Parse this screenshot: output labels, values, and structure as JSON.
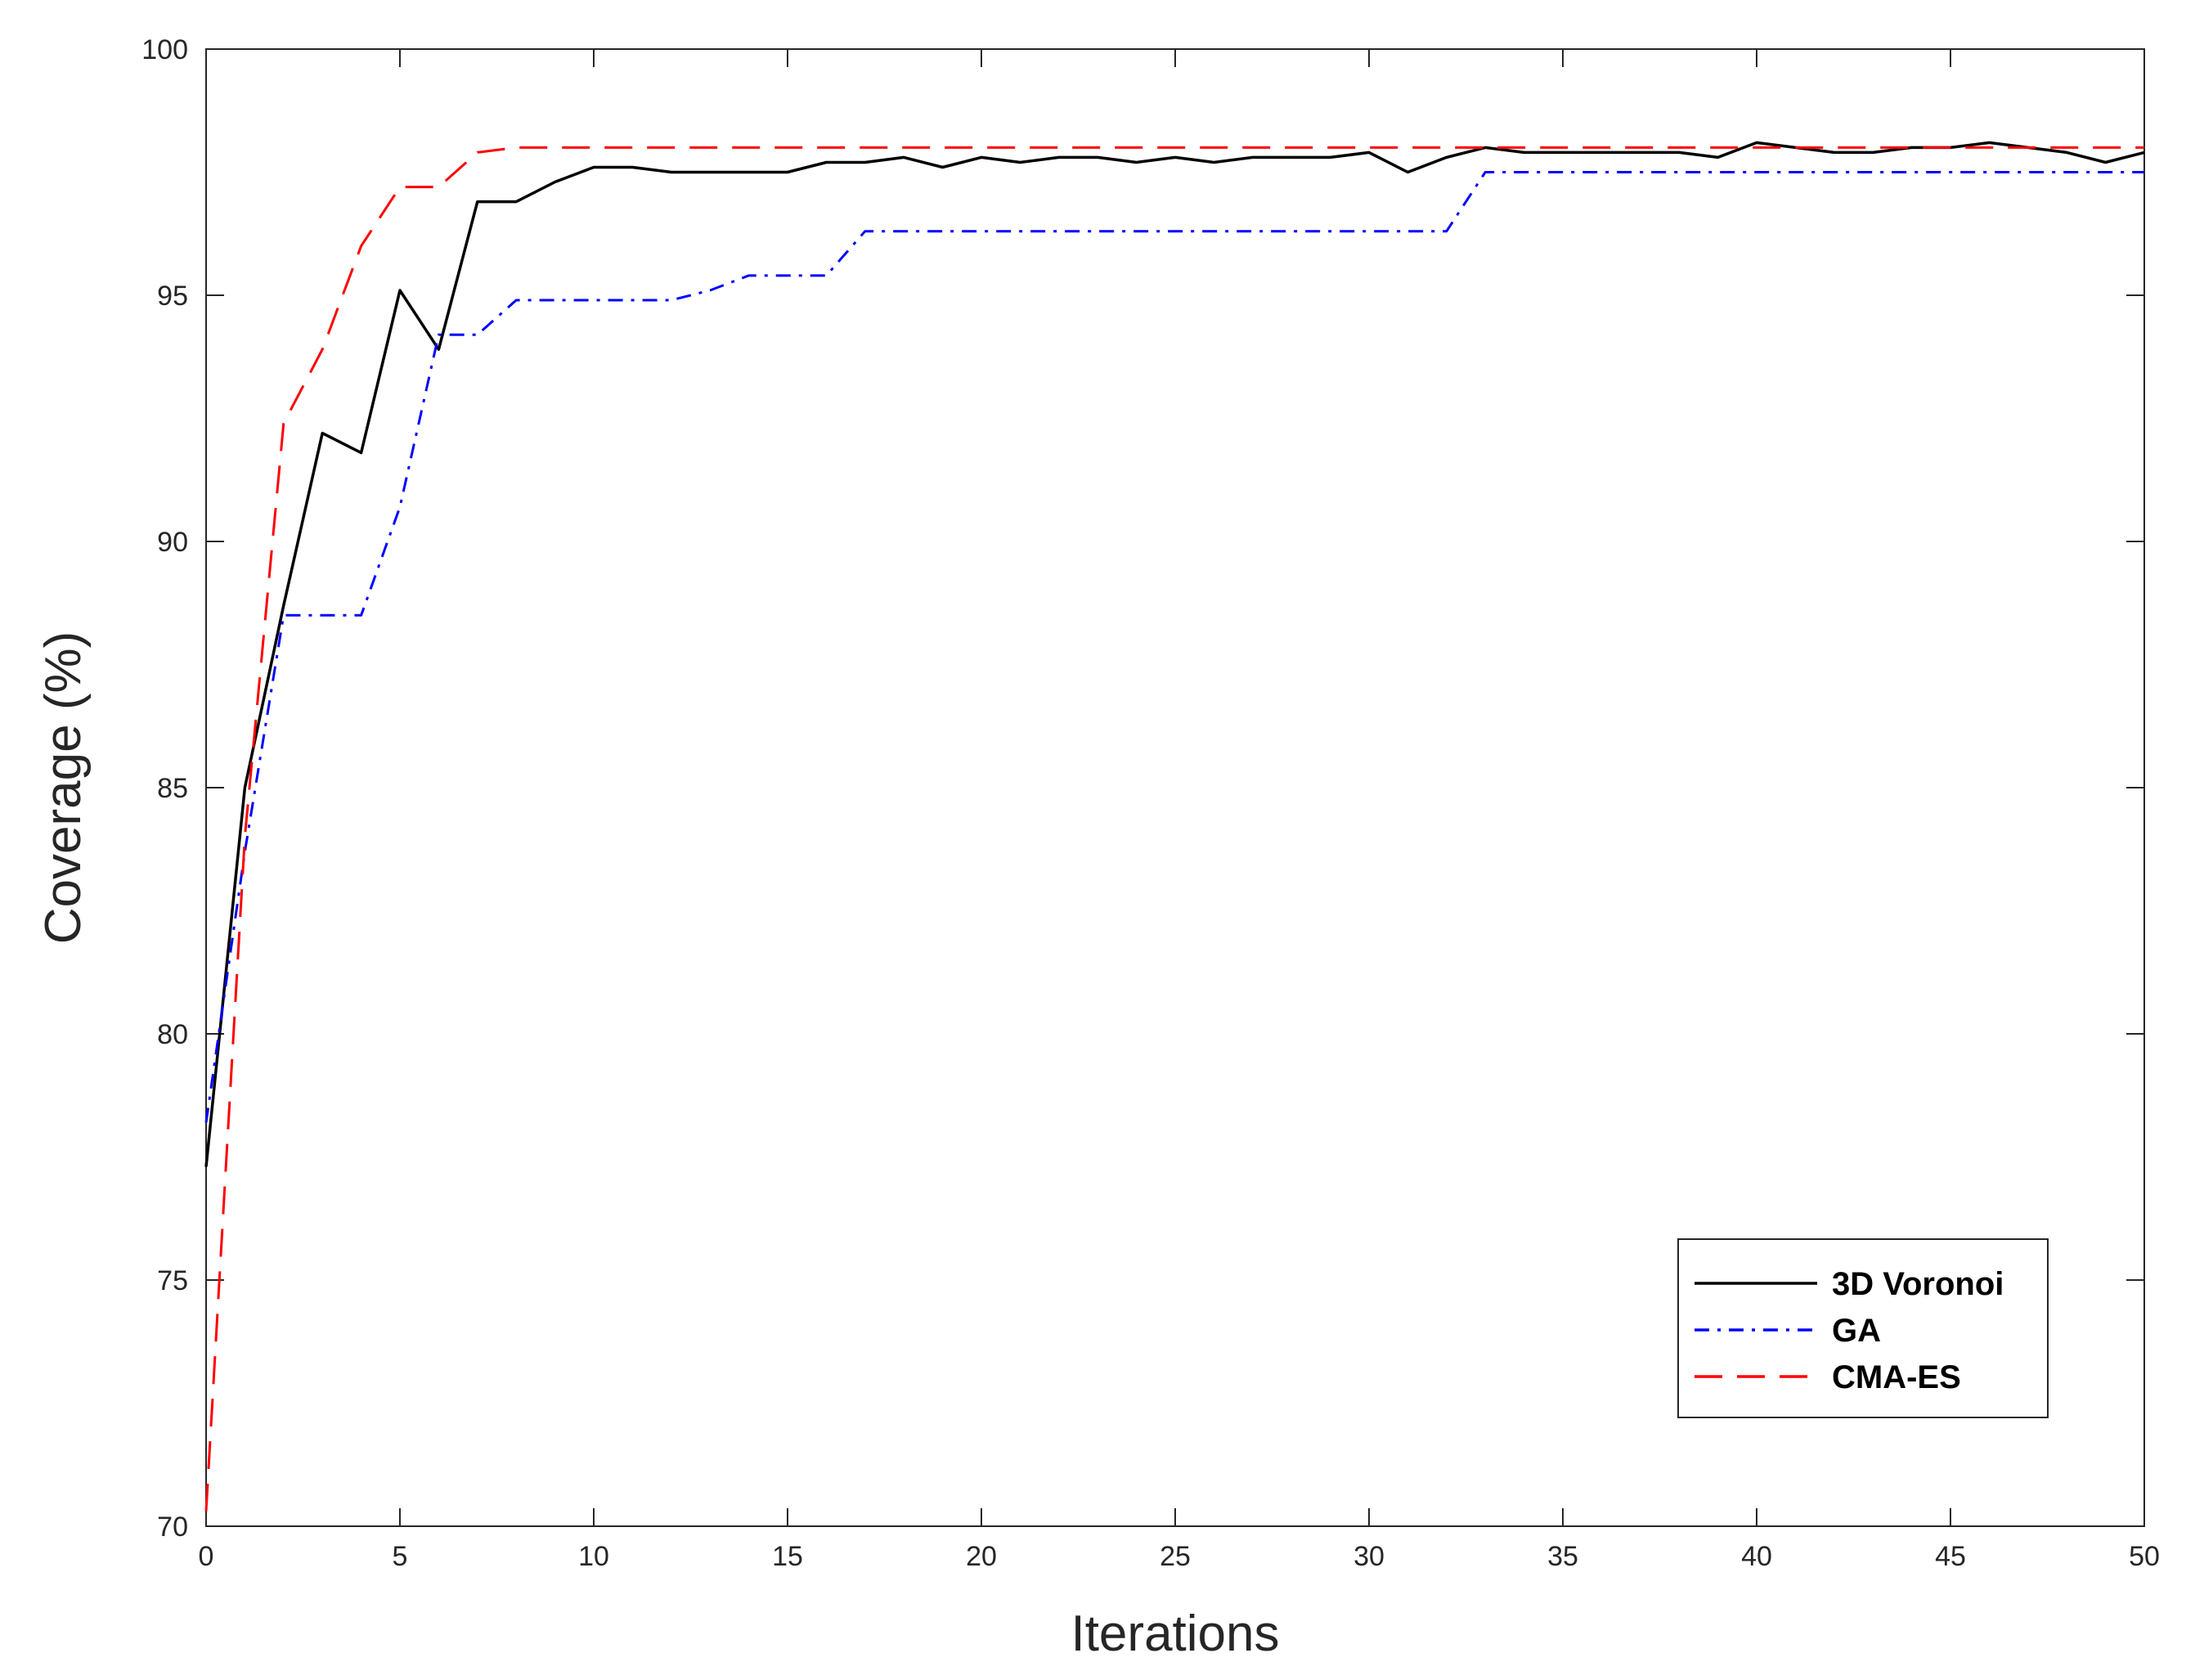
{
  "chart_data": {
    "type": "line",
    "title": "",
    "xlabel": "Iterations",
    "ylabel": "Coverage (%)",
    "xlim": [
      0,
      50
    ],
    "ylim": [
      70,
      100
    ],
    "xticks": [
      0,
      5,
      10,
      15,
      20,
      25,
      30,
      35,
      40,
      45,
      50
    ],
    "yticks": [
      70,
      75,
      80,
      85,
      90,
      95,
      100
    ],
    "grid": false,
    "legend_position": "bottom-right",
    "series": [
      {
        "name": "3D Voronoi",
        "color": "#000000",
        "style": "solid",
        "x": [
          0,
          1,
          2,
          3,
          4,
          5,
          6,
          7,
          8,
          9,
          10,
          11,
          12,
          13,
          14,
          15,
          16,
          17,
          18,
          19,
          20,
          21,
          22,
          23,
          24,
          25,
          26,
          27,
          28,
          29,
          30,
          31,
          32,
          33,
          34,
          35,
          36,
          37,
          38,
          39,
          40,
          41,
          42,
          43,
          44,
          45,
          46,
          47,
          48,
          49,
          50
        ],
        "values": [
          77.3,
          85.0,
          88.7,
          92.2,
          91.8,
          95.1,
          93.9,
          96.9,
          96.9,
          97.3,
          97.6,
          97.6,
          97.5,
          97.5,
          97.5,
          97.5,
          97.7,
          97.7,
          97.8,
          97.6,
          97.8,
          97.7,
          97.8,
          97.8,
          97.7,
          97.8,
          97.7,
          97.8,
          97.8,
          97.8,
          97.9,
          97.5,
          97.8,
          98.0,
          97.9,
          97.9,
          97.9,
          97.9,
          97.9,
          97.8,
          98.1,
          98.0,
          97.9,
          97.9,
          98.0,
          98.0,
          98.1,
          98.0,
          97.9,
          97.7,
          97.9
        ]
      },
      {
        "name": "GA",
        "color": "#0000ff",
        "style": "dashdot",
        "x": [
          0,
          1,
          2,
          3,
          4,
          5,
          6,
          7,
          8,
          9,
          10,
          11,
          12,
          13,
          14,
          15,
          16,
          17,
          18,
          19,
          20,
          21,
          22,
          23,
          24,
          25,
          26,
          27,
          28,
          29,
          30,
          31,
          32,
          33,
          34,
          35,
          36,
          37,
          38,
          39,
          40,
          41,
          42,
          43,
          44,
          45,
          46,
          47,
          48,
          49,
          50
        ],
        "values": [
          78.2,
          83.7,
          88.5,
          88.5,
          88.5,
          90.7,
          94.2,
          94.2,
          94.9,
          94.9,
          94.9,
          94.9,
          94.9,
          95.1,
          95.4,
          95.4,
          95.4,
          96.3,
          96.3,
          96.3,
          96.3,
          96.3,
          96.3,
          96.3,
          96.3,
          96.3,
          96.3,
          96.3,
          96.3,
          96.3,
          96.3,
          96.3,
          96.3,
          97.5,
          97.5,
          97.5,
          97.5,
          97.5,
          97.5,
          97.5,
          97.5,
          97.5,
          97.5,
          97.5,
          97.5,
          97.5,
          97.5,
          97.5,
          97.5,
          97.5,
          97.5
        ]
      },
      {
        "name": "CMA-ES",
        "color": "#ff0000",
        "style": "dashed",
        "x": [
          0,
          1,
          2,
          3,
          4,
          5,
          6,
          7,
          8,
          9,
          10,
          11,
          12,
          13,
          14,
          15,
          16,
          17,
          18,
          19,
          20,
          21,
          22,
          23,
          24,
          25,
          26,
          27,
          28,
          29,
          30,
          31,
          32,
          33,
          34,
          35,
          36,
          37,
          38,
          39,
          40,
          41,
          42,
          43,
          44,
          45,
          46,
          47,
          48,
          49,
          50
        ],
        "values": [
          70.3,
          84.0,
          92.4,
          93.9,
          96.0,
          97.2,
          97.2,
          97.9,
          98.0,
          98.0,
          98.0,
          98.0,
          98.0,
          98.0,
          98.0,
          98.0,
          98.0,
          98.0,
          98.0,
          98.0,
          98.0,
          98.0,
          98.0,
          98.0,
          98.0,
          98.0,
          98.0,
          98.0,
          98.0,
          98.0,
          98.0,
          98.0,
          98.0,
          98.0,
          98.0,
          98.0,
          98.0,
          98.0,
          98.0,
          98.0,
          98.0,
          98.0,
          98.0,
          98.0,
          98.0,
          98.0,
          98.0,
          98.0,
          98.0,
          98.0,
          98.0
        ]
      }
    ]
  }
}
